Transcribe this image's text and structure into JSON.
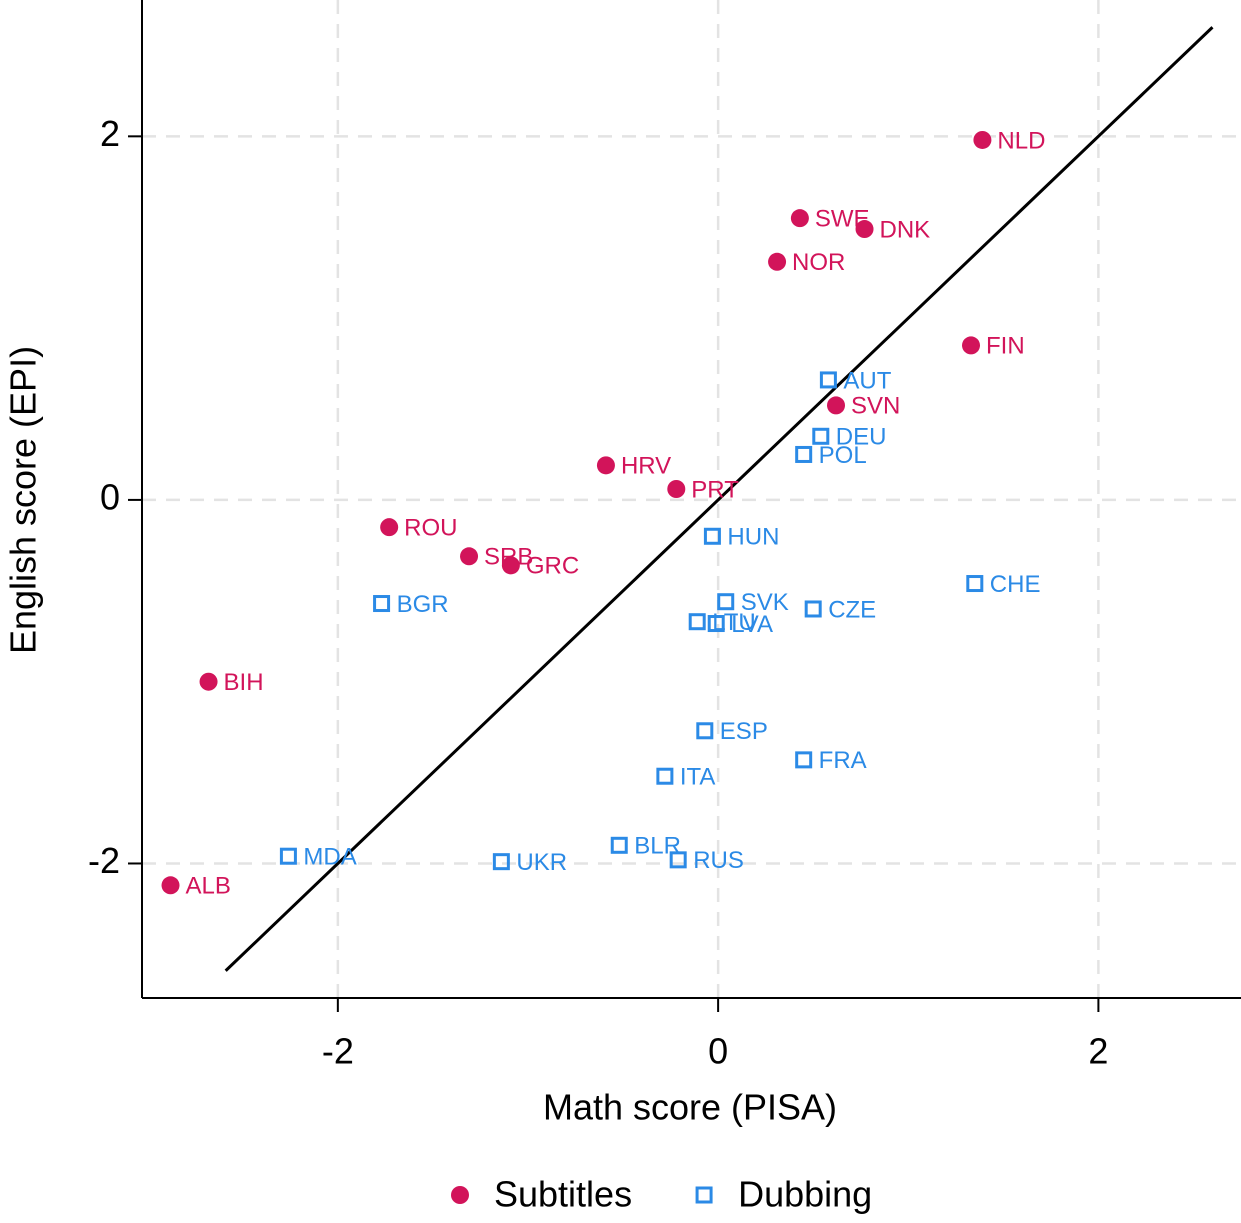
{
  "chart_data": {
    "type": "scatter",
    "xlabel": "Math score (PISA)",
    "ylabel": "English score (EPI)",
    "xlim": [
      -3.03,
      2.75
    ],
    "ylim": [
      -2.74,
      2.75
    ],
    "xticks": [
      -2,
      0,
      2
    ],
    "yticks": [
      -2,
      0,
      2
    ],
    "grid": true,
    "legend": "bottom",
    "reference_line": {
      "x": [
        -2.59,
        2.6
      ],
      "y": [
        -2.59,
        2.6
      ],
      "color": "#000000"
    },
    "series": [
      {
        "name": "Subtitles",
        "color": "#d2145a",
        "marker": "circle",
        "labels": [
          "NLD",
          "SWE",
          "DNK",
          "NOR",
          "FIN",
          "SVN",
          "HRV",
          "PRT",
          "ROU",
          "SRB",
          "GRC",
          "BIH",
          "ALB"
        ],
        "x": [
          1.39,
          0.43,
          0.77,
          0.31,
          1.33,
          0.62,
          -0.59,
          -0.22,
          -1.73,
          -1.31,
          -1.09,
          -2.68,
          -2.88
        ],
        "values": [
          1.98,
          1.55,
          1.49,
          1.31,
          0.85,
          0.52,
          0.19,
          0.06,
          -0.15,
          -0.31,
          -0.36,
          -1.0,
          -2.12
        ]
      },
      {
        "name": "Dubbing",
        "color": "#2b8ae6",
        "marker": "square",
        "labels": [
          "AUT",
          "DEU",
          "POL",
          "HUN",
          "CHE",
          "SVK",
          "CZE",
          "LTU",
          "LVA",
          "BGR",
          "ESP",
          "FRA",
          "ITA",
          "BLR",
          "RUS",
          "UKR",
          "MDA"
        ],
        "x": [
          0.58,
          0.54,
          0.45,
          -0.03,
          1.35,
          0.04,
          0.5,
          -0.11,
          -0.01,
          -1.77,
          -0.07,
          0.45,
          -0.28,
          -0.52,
          -0.21,
          -1.14,
          -2.26
        ],
        "values": [
          0.66,
          0.35,
          0.25,
          -0.2,
          -0.46,
          -0.56,
          -0.6,
          -0.67,
          -0.68,
          -0.57,
          -1.27,
          -1.43,
          -1.52,
          -1.9,
          -1.98,
          -1.99,
          -1.96
        ]
      }
    ]
  }
}
